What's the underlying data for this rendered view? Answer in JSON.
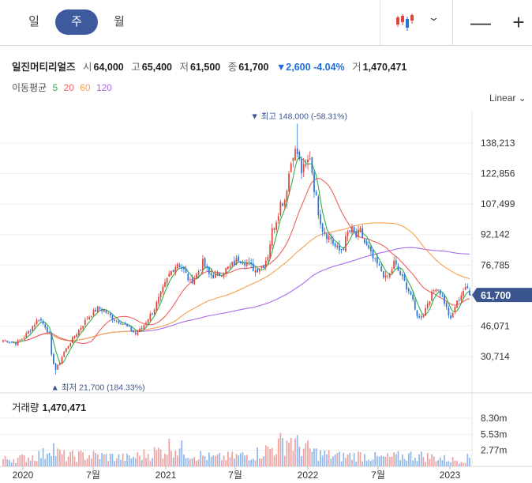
{
  "toolbar": {
    "periods": [
      "일",
      "주",
      "월"
    ],
    "active_period": "주",
    "chart_type_icon": "candlestick-icon",
    "zoom_out_label": "—",
    "zoom_in_label": "+"
  },
  "stock": {
    "name": "일진머티리얼즈",
    "open_label": "시",
    "open": "64,000",
    "high_label": "고",
    "high": "65,400",
    "low_label": "저",
    "low": "61,500",
    "close_label": "종",
    "close": "61,700",
    "change": "▼2,600 -4.04%",
    "volume_label": "거",
    "volume": "1,470,471"
  },
  "moving_average": {
    "label": "이동평균",
    "periods": [
      {
        "value": "5",
        "color": "#2fae4a"
      },
      {
        "value": "20",
        "color": "#f06060"
      },
      {
        "value": "60",
        "color": "#f5a14a"
      },
      {
        "value": "120",
        "color": "#a86be8"
      }
    ]
  },
  "scale_label": "Linear",
  "volume_panel": {
    "label": "거래량",
    "value": "1,470,471"
  },
  "colors": {
    "up": "#e0463c",
    "down": "#2b74d8",
    "vol_up": "#eda3a3",
    "vol_down": "#8fb9ea",
    "price_tag": "#3b558f"
  },
  "chart_data": {
    "type": "candlestick",
    "price_axis_ticks": [
      "138,213",
      "122,856",
      "107,499",
      "92,142",
      "76,785",
      "46,071",
      "30,714"
    ],
    "price_axis_values": [
      138213,
      122856,
      107499,
      92142,
      76785,
      46071,
      30714
    ],
    "current_price_tag": "61,700",
    "current_price": 61700,
    "max_annotation": "▼ 최고 148,000 (-58.31%)",
    "max_price": 148000,
    "min_annotation": "▲ 최저 21,700 (184.33%)",
    "min_price": 21700,
    "x_axis_labels": [
      "2020",
      "7월",
      "2021",
      "7월",
      "2022",
      "7월",
      "2023"
    ],
    "volume_axis_ticks": [
      "8.30m",
      "5.53m",
      "2.77m"
    ],
    "volume_axis_values": [
      8.3,
      5.53,
      2.77
    ],
    "close_anchors": [
      [
        0,
        39000
      ],
      [
        6,
        37500
      ],
      [
        10,
        40500
      ],
      [
        14,
        46000
      ],
      [
        17,
        50000
      ],
      [
        20,
        46000
      ],
      [
        22,
        42000
      ],
      [
        23,
        31000
      ],
      [
        25,
        24000
      ],
      [
        27,
        28000
      ],
      [
        29,
        33000
      ],
      [
        32,
        38000
      ],
      [
        36,
        44000
      ],
      [
        40,
        50000
      ],
      [
        45,
        55000
      ],
      [
        48,
        54000
      ],
      [
        52,
        50000
      ],
      [
        56,
        48000
      ],
      [
        60,
        45000
      ],
      [
        63,
        42000
      ],
      [
        66,
        45000
      ],
      [
        69,
        50000
      ],
      [
        72,
        55000
      ],
      [
        75,
        62000
      ],
      [
        79,
        72000
      ],
      [
        83,
        78000
      ],
      [
        86,
        74000
      ],
      [
        89,
        68000
      ],
      [
        92,
        72000
      ],
      [
        95,
        78000
      ],
      [
        98,
        72000
      ],
      [
        101,
        71000
      ],
      [
        104,
        73000
      ],
      [
        108,
        76000
      ],
      [
        112,
        80000
      ],
      [
        116,
        78000
      ],
      [
        120,
        74000
      ],
      [
        124,
        77000
      ],
      [
        126,
        82000
      ],
      [
        128,
        94000
      ],
      [
        130,
        100000
      ],
      [
        132,
        108000
      ],
      [
        134,
        110000
      ],
      [
        136,
        123000
      ],
      [
        138,
        134000
      ],
      [
        140,
        133000
      ],
      [
        142,
        124000
      ],
      [
        144,
        126000
      ],
      [
        146,
        132000
      ],
      [
        148,
        116000
      ],
      [
        150,
        104000
      ],
      [
        152,
        95000
      ],
      [
        154,
        92000
      ],
      [
        156,
        90000
      ],
      [
        158,
        86000
      ],
      [
        160,
        84000
      ],
      [
        162,
        86000
      ],
      [
        164,
        93000
      ],
      [
        166,
        94000
      ],
      [
        168,
        91000
      ],
      [
        170,
        94000
      ],
      [
        172,
        88000
      ],
      [
        174,
        84000
      ],
      [
        176,
        80000
      ],
      [
        178,
        77000
      ],
      [
        180,
        74000
      ],
      [
        182,
        70000
      ],
      [
        184,
        72000
      ],
      [
        186,
        78000
      ],
      [
        188,
        74000
      ],
      [
        190,
        70000
      ],
      [
        192,
        66000
      ],
      [
        194,
        62000
      ],
      [
        196,
        54000
      ],
      [
        198,
        50000
      ],
      [
        200,
        52000
      ],
      [
        202,
        58000
      ],
      [
        204,
        62000
      ],
      [
        206,
        66000
      ],
      [
        208,
        63000
      ],
      [
        210,
        58000
      ],
      [
        212,
        52000
      ],
      [
        213,
        49000
      ],
      [
        215,
        56000
      ],
      [
        217,
        60000
      ],
      [
        219,
        64000
      ],
      [
        221,
        65000
      ],
      [
        222,
        61700
      ]
    ],
    "volume_anchors": [
      [
        0,
        1.0
      ],
      [
        10,
        1.2
      ],
      [
        20,
        1.8
      ],
      [
        23,
        3.5
      ],
      [
        25,
        2.0
      ],
      [
        30,
        1.4
      ],
      [
        40,
        1.6
      ],
      [
        60,
        1.2
      ],
      [
        75,
        2.2
      ],
      [
        80,
        3.0
      ],
      [
        90,
        1.8
      ],
      [
        100,
        1.2
      ],
      [
        110,
        1.4
      ],
      [
        120,
        1.8
      ],
      [
        130,
        2.8
      ],
      [
        136,
        4.0
      ],
      [
        140,
        3.0
      ],
      [
        150,
        1.8
      ],
      [
        160,
        1.4
      ],
      [
        170,
        1.6
      ],
      [
        180,
        1.2
      ],
      [
        196,
        1.6
      ],
      [
        205,
        1.3
      ],
      [
        215,
        0.9
      ],
      [
        222,
        1.2
      ]
    ]
  }
}
